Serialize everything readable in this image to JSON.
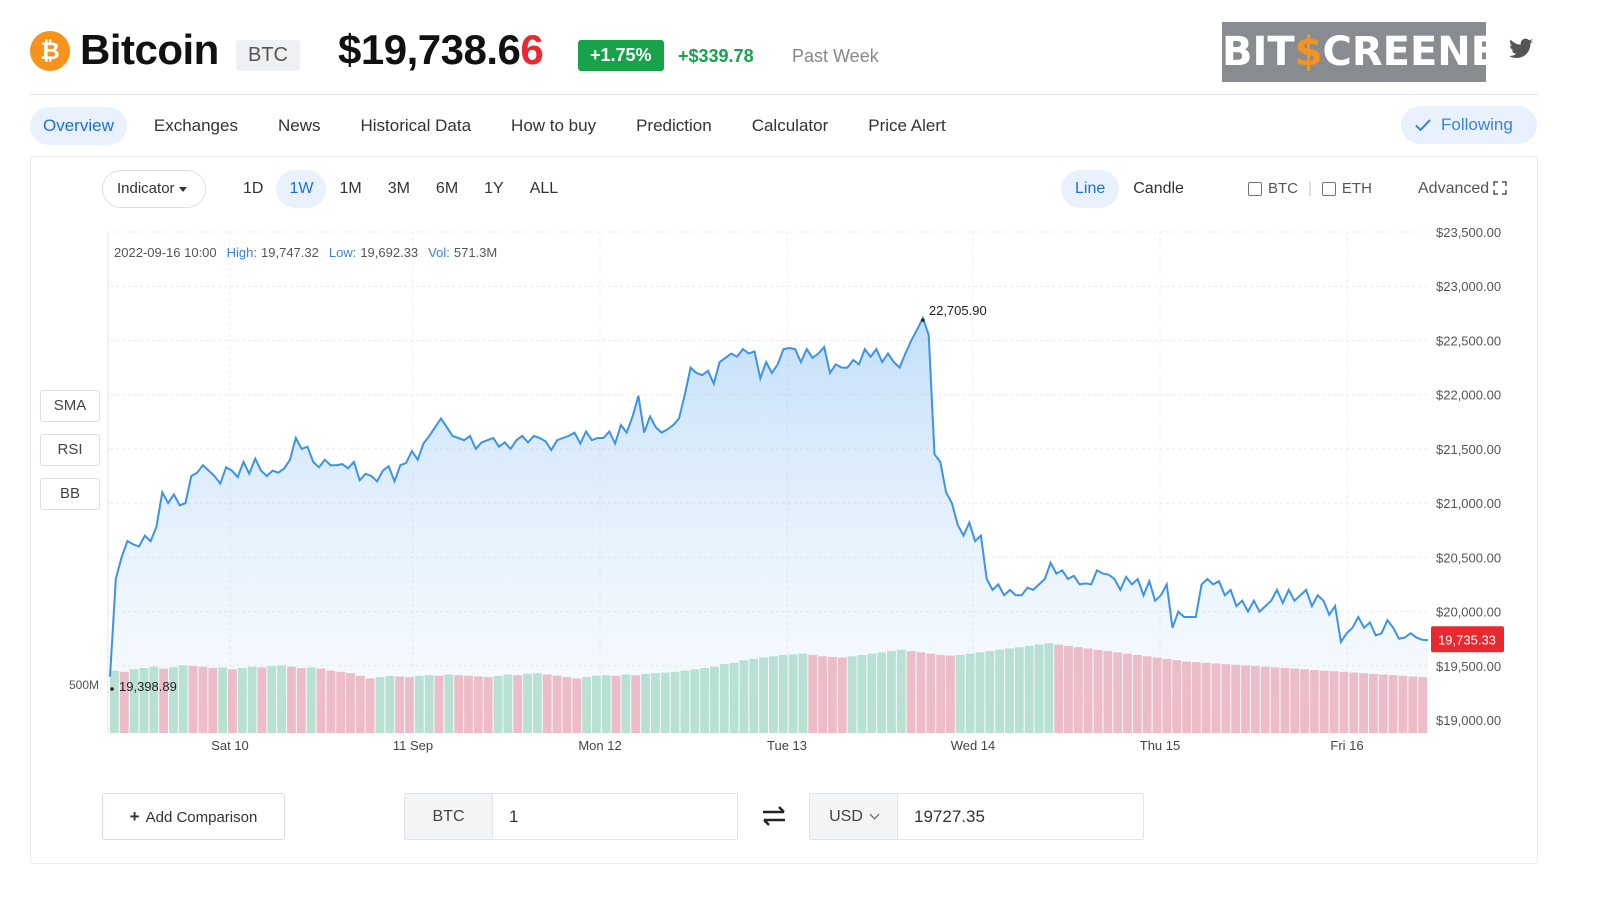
{
  "header": {
    "coin_name": "Bitcoin",
    "coin_symbol": "BTC",
    "price_main": "$19,738.6",
    "price_last_digit": "6",
    "change_pct": "+1.75%",
    "change_abs": "+$339.78",
    "change_period": "Past Week",
    "brand_left": "BIT",
    "brand_dollar": "$",
    "brand_right": "CREENER"
  },
  "tabs": [
    "Overview",
    "Exchanges",
    "News",
    "Historical Data",
    "How to buy",
    "Prediction",
    "Calculator",
    "Price Alert"
  ],
  "follow_label": "Following",
  "toolbar": {
    "indicator_label": "Indicator",
    "ranges": [
      "1D",
      "1W",
      "1M",
      "3M",
      "6M",
      "1Y",
      "ALL"
    ],
    "active_range": "1W",
    "types": [
      "Line",
      "Candle"
    ],
    "active_type": "Line",
    "compare": [
      "BTC",
      "ETH"
    ],
    "advanced_label": "Advanced"
  },
  "side_buttons": [
    "SMA",
    "RSI",
    "BB"
  ],
  "tooltip": {
    "datetime": "2022-09-16 10:00",
    "high_label": "High:",
    "high_value": "19,747.32",
    "low_label": "Low:",
    "low_value": "19,692.33",
    "vol_label": "Vol:",
    "vol_value": "571.3M"
  },
  "chart_data": {
    "type": "line",
    "series": [
      {
        "values": [
          19398.89,
          20300,
          20500,
          20650,
          20620,
          20600,
          20700,
          20650,
          20780,
          21100,
          21000,
          21080,
          20980,
          21000,
          21250,
          21280,
          21350,
          21300,
          21250,
          21180,
          21330,
          21300,
          21240,
          21380,
          21270,
          21410,
          21300,
          21250,
          21300,
          21280,
          21320,
          21400,
          21600,
          21500,
          21520,
          21380,
          21330,
          21400,
          21350,
          21350,
          21360,
          21320,
          21380,
          21210,
          21270,
          21250,
          21200,
          21300,
          21340,
          21200,
          21350,
          21370,
          21480,
          21400,
          21550,
          21620,
          21700,
          21780,
          21700,
          21620,
          21600,
          21580,
          21620,
          21500,
          21560,
          21580,
          21600,
          21520,
          21560,
          21500,
          21580,
          21620,
          21560,
          21620,
          21600,
          21570,
          21490,
          21580,
          21600,
          21620,
          21650,
          21550,
          21660,
          21580,
          21600,
          21600,
          21660,
          21550,
          21720,
          21650,
          21800,
          21990,
          21650,
          21800,
          21700,
          21650,
          21680,
          21720,
          21780,
          22000,
          22250,
          22200,
          22180,
          22220,
          22100,
          22300,
          22340,
          22380,
          22350,
          22420,
          22380,
          22400,
          22150,
          22300,
          22200,
          22280,
          22420,
          22430,
          22420,
          22300,
          22420,
          22340,
          22380,
          22440,
          22200,
          22280,
          22250,
          22250,
          22320,
          22280,
          22420,
          22350,
          22420,
          22300,
          22380,
          22300,
          22250,
          22380,
          22500,
          22600,
          22705.9,
          22550,
          21450,
          21380,
          21100,
          21000,
          20800,
          20700,
          20820,
          20650,
          20700,
          20300,
          20200,
          20250,
          20150,
          20200,
          20150,
          20150,
          20220,
          20200,
          20250,
          20300,
          20450,
          20350,
          20380,
          20300,
          20330,
          20250,
          20260,
          20250,
          20380,
          20350,
          20340,
          20300,
          20200,
          20320,
          20250,
          20300,
          20150,
          20280,
          20100,
          20150,
          20250,
          19850,
          20000,
          19950,
          19950,
          19950,
          20250,
          20300,
          20250,
          20280,
          20150,
          20200,
          20050,
          20100,
          20000,
          20100,
          20000,
          20050,
          20100,
          20200,
          20080,
          20200,
          20100,
          20150,
          20200,
          20050,
          20150,
          20100,
          19970,
          20050,
          19720,
          19800,
          19850,
          19950,
          19850,
          19900,
          19780,
          19800,
          19920,
          19850,
          19750,
          19760,
          19800,
          19760,
          19740,
          19735.33
        ],
        "color": "#3d93e6"
      }
    ],
    "x_ticks": [
      "Sat 10",
      "11 Sep",
      "Mon 12",
      "Tue 13",
      "Wed 14",
      "Thu 15",
      "Fri 16"
    ],
    "y_ticks": [
      "$19,000.00",
      "$19,500.00",
      "$20,000.00",
      "$20,500.00",
      "$21,000.00",
      "$21,500.00",
      "$22,000.00",
      "$22,500.00",
      "$23,000.00",
      "$23,500.00"
    ],
    "ylim": [
      19000,
      23500
    ],
    "max_label": "22,705.90",
    "min_label": "19,398.89",
    "last_label": "19,735.33",
    "volume_label": "500M",
    "volume": {
      "values": [
        480,
        470,
        490,
        500,
        510,
        495,
        505,
        520,
        515,
        510,
        500,
        505,
        490,
        500,
        510,
        505,
        515,
        520,
        510,
        500,
        505,
        495,
        480,
        470,
        460,
        440,
        420,
        430,
        440,
        435,
        430,
        440,
        445,
        440,
        450,
        445,
        440,
        435,
        430,
        440,
        450,
        445,
        455,
        460,
        450,
        440,
        430,
        420,
        430,
        440,
        445,
        440,
        450,
        445,
        455,
        460,
        465,
        470,
        480,
        490,
        500,
        510,
        530,
        540,
        560,
        570,
        580,
        590,
        600,
        605,
        610,
        600,
        590,
        585,
        580,
        590,
        600,
        610,
        620,
        630,
        640,
        630,
        620,
        610,
        600,
        595,
        600,
        610,
        620,
        630,
        640,
        650,
        660,
        670,
        680,
        690,
        680,
        670,
        660,
        650,
        640,
        630,
        620,
        610,
        600,
        590,
        580,
        570,
        560,
        550,
        545,
        540,
        535,
        530,
        525,
        520,
        515,
        510,
        505,
        500,
        495,
        490,
        485,
        480,
        475,
        470,
        465,
        460,
        455,
        450,
        445,
        440,
        435,
        430
      ],
      "up_color": "#b4e0cb",
      "down_color": "#f3b4bd"
    },
    "line_color": "#3d93e6",
    "last_badge_color": "#e9282f"
  },
  "converter": {
    "add_comparison": "Add Comparison",
    "from_label": "BTC",
    "from_value": "1",
    "to_label": "USD",
    "to_value": "19727.35"
  }
}
